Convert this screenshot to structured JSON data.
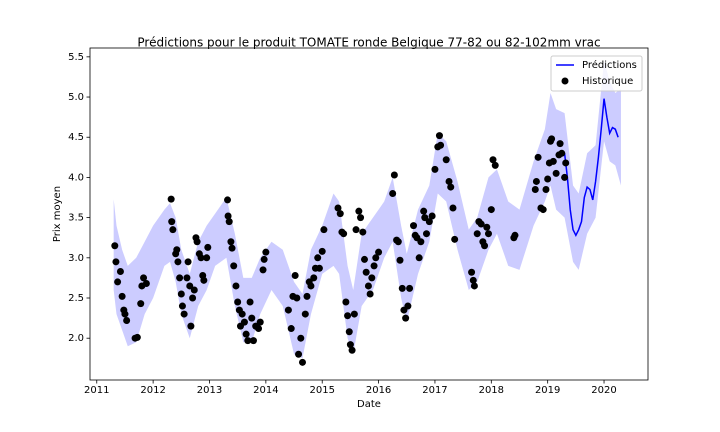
{
  "chart_data": {
    "type": "line",
    "title": "Prédictions pour le produit TOMATE ronde Belgique 77-82 ou 82-102mm vrac",
    "xlabel": "Date",
    "ylabel": "Prix moyen",
    "xlim": [
      2010.88,
      2020.78
    ],
    "ylim": [
      1.48,
      5.61
    ],
    "xticks": [
      2011,
      2012,
      2013,
      2014,
      2015,
      2016,
      2017,
      2018,
      2019,
      2020
    ],
    "yticks": [
      {
        "value": 2,
        "label": "2.0"
      },
      2.5,
      {
        "value": 3,
        "label": "3.0"
      },
      3.5,
      {
        "value": 4,
        "label": "4.0"
      },
      4.5,
      {
        "value": 5,
        "label": "5.0"
      },
      5.5
    ],
    "legend": "upper right",
    "interval": {
      "color": "#ccccff",
      "x": [
        2011.3,
        2011.35,
        2011.45,
        2011.55,
        2011.7,
        2011.85,
        2012.0,
        2012.2,
        2012.3,
        2012.4,
        2012.5,
        2012.65,
        2012.8,
        2012.95,
        2013.1,
        2013.3,
        2013.45,
        2013.6,
        2013.75,
        2013.9,
        2014.1,
        2014.3,
        2014.5,
        2014.65,
        2014.8,
        2015.0,
        2015.2,
        2015.3,
        2015.45,
        2015.55,
        2015.7,
        2015.9,
        2016.1,
        2016.25,
        2016.4,
        2016.5,
        2016.7,
        2016.9,
        2017.05,
        2017.2,
        2017.4,
        2017.6,
        2017.75,
        2017.95,
        2018.1,
        2018.3,
        2018.5,
        2018.75,
        2018.95,
        2019.05,
        2019.15,
        2019.3,
        2019.45,
        2019.55,
        2019.7,
        2019.85,
        2020.0,
        2020.1,
        2020.2,
        2020.3
      ],
      "lower": [
        2.6,
        2.3,
        2.1,
        1.9,
        1.95,
        2.3,
        2.5,
        2.9,
        2.95,
        2.7,
        2.3,
        2.0,
        2.4,
        2.6,
        2.9,
        3.0,
        2.4,
        1.95,
        1.95,
        2.3,
        2.6,
        2.4,
        1.8,
        1.75,
        2.3,
        2.8,
        2.9,
        2.8,
        2.0,
        1.8,
        2.4,
        2.6,
        3.0,
        3.2,
        2.5,
        2.2,
        2.8,
        3.2,
        3.8,
        3.7,
        3.1,
        2.6,
        2.7,
        3.1,
        3.3,
        2.9,
        2.85,
        3.4,
        3.7,
        3.9,
        3.6,
        3.5,
        2.95,
        2.85,
        3.3,
        3.5,
        4.45,
        4.2,
        4.15,
        3.9
      ],
      "upper": [
        3.73,
        3.4,
        3.1,
        2.9,
        3.0,
        3.2,
        3.4,
        3.6,
        3.68,
        3.5,
        3.1,
        2.8,
        3.2,
        3.4,
        3.55,
        3.75,
        3.3,
        2.75,
        2.75,
        3.0,
        3.2,
        3.1,
        2.7,
        2.55,
        3.1,
        3.4,
        3.8,
        3.7,
        2.9,
        2.6,
        3.3,
        3.5,
        3.7,
        4.0,
        3.4,
        3.05,
        3.6,
        3.9,
        4.55,
        4.45,
        3.95,
        3.35,
        3.5,
        4.0,
        4.1,
        3.7,
        3.6,
        4.2,
        4.6,
        5.05,
        4.85,
        4.8,
        3.9,
        3.8,
        4.3,
        4.4,
        5.45,
        5.2,
        5.05,
        5.1
      ]
    },
    "series": [
      {
        "name": "Prédictions",
        "type": "line",
        "color": "#0000ff",
        "x": [
          2019.3,
          2019.35,
          2019.4,
          2019.45,
          2019.5,
          2019.55,
          2019.6,
          2019.65,
          2019.7,
          2019.75,
          2019.8,
          2019.85,
          2019.9,
          2019.95,
          2020.0,
          2020.05,
          2020.1,
          2020.15,
          2020.2,
          2020.25
        ],
        "values": [
          4.3,
          4.0,
          3.6,
          3.35,
          3.28,
          3.35,
          3.45,
          3.75,
          3.88,
          3.85,
          3.72,
          3.95,
          4.25,
          4.6,
          4.98,
          4.75,
          4.55,
          4.62,
          4.6,
          4.5
        ]
      },
      {
        "name": "Historique",
        "type": "scatter",
        "color": "#000000",
        "x": [
          2011.32,
          2011.34,
          2011.37,
          2011.42,
          2011.45,
          2011.48,
          2011.5,
          2011.53,
          2011.68,
          2011.72,
          2011.78,
          2011.8,
          2011.83,
          2011.88,
          2012.32,
          2012.33,
          2012.35,
          2012.4,
          2012.42,
          2012.44,
          2012.47,
          2012.5,
          2012.52,
          2012.55,
          2012.6,
          2012.62,
          2012.65,
          2012.67,
          2012.7,
          2012.73,
          2012.76,
          2012.78,
          2012.82,
          2012.85,
          2012.88,
          2012.9,
          2012.95,
          2012.97,
          2013.32,
          2013.33,
          2013.35,
          2013.38,
          2013.4,
          2013.43,
          2013.47,
          2013.5,
          2013.53,
          2013.55,
          2013.58,
          2013.62,
          2013.65,
          2013.68,
          2013.72,
          2013.75,
          2013.78,
          2013.82,
          2013.87,
          2013.9,
          2013.95,
          2013.97,
          2014.0,
          2014.4,
          2014.45,
          2014.48,
          2014.52,
          2014.55,
          2014.58,
          2014.62,
          2014.65,
          2014.7,
          2014.73,
          2014.77,
          2014.8,
          2014.85,
          2014.88,
          2014.92,
          2014.95,
          2015.0,
          2015.03,
          2015.28,
          2015.32,
          2015.35,
          2015.38,
          2015.42,
          2015.45,
          2015.48,
          2015.5,
          2015.53,
          2015.57,
          2015.6,
          2015.65,
          2015.68,
          2015.72,
          2015.75,
          2015.78,
          2015.82,
          2015.85,
          2015.88,
          2015.92,
          2015.95,
          2016.0,
          2016.25,
          2016.28,
          2016.32,
          2016.35,
          2016.38,
          2016.42,
          2016.45,
          2016.48,
          2016.52,
          2016.55,
          2016.62,
          2016.65,
          2016.68,
          2016.72,
          2016.75,
          2016.8,
          2016.82,
          2016.85,
          2016.9,
          2016.95,
          2017.0,
          2017.05,
          2017.08,
          2017.1,
          2017.2,
          2017.25,
          2017.28,
          2017.32,
          2017.35,
          2017.65,
          2017.68,
          2017.7,
          2017.75,
          2017.78,
          2017.82,
          2017.85,
          2017.88,
          2017.92,
          2017.95,
          2018.0,
          2018.03,
          2018.07,
          2018.4,
          2018.42,
          2018.78,
          2018.8,
          2018.83,
          2018.88,
          2018.92,
          2018.97,
          2019.0,
          2019.03,
          2019.05,
          2019.07,
          2019.1,
          2019.15,
          2019.2,
          2019.22,
          2019.25,
          2019.3,
          2019.32
        ],
        "values": [
          3.15,
          2.95,
          2.7,
          2.83,
          2.52,
          2.35,
          2.3,
          2.22,
          2.0,
          2.01,
          2.43,
          2.65,
          2.75,
          2.68,
          3.73,
          3.45,
          3.35,
          3.05,
          3.1,
          2.95,
          2.75,
          2.55,
          2.4,
          2.3,
          2.75,
          2.95,
          2.65,
          2.15,
          2.5,
          2.6,
          3.25,
          3.2,
          3.05,
          3.0,
          2.78,
          2.72,
          3.0,
          3.13,
          3.72,
          3.52,
          3.45,
          3.2,
          3.12,
          2.9,
          2.65,
          2.45,
          2.35,
          2.15,
          2.3,
          2.2,
          2.05,
          1.97,
          2.45,
          2.25,
          1.97,
          2.15,
          2.12,
          2.2,
          2.85,
          2.98,
          3.07,
          2.35,
          2.12,
          2.52,
          2.78,
          2.5,
          1.8,
          2.0,
          1.7,
          2.3,
          2.52,
          2.7,
          2.65,
          2.75,
          2.87,
          3.0,
          2.87,
          3.08,
          3.35,
          3.62,
          3.55,
          3.32,
          3.3,
          2.45,
          2.28,
          2.08,
          1.92,
          1.85,
          2.3,
          3.35,
          3.58,
          3.5,
          3.32,
          2.98,
          2.82,
          2.65,
          2.55,
          2.75,
          2.9,
          3.0,
          3.07,
          3.8,
          4.03,
          3.22,
          3.2,
          2.97,
          2.62,
          2.35,
          2.25,
          2.4,
          2.62,
          3.4,
          3.28,
          3.25,
          3.0,
          3.2,
          3.58,
          3.5,
          3.3,
          3.45,
          3.52,
          4.1,
          4.38,
          4.52,
          4.4,
          4.22,
          3.95,
          3.88,
          3.62,
          3.23,
          2.82,
          2.72,
          2.65,
          3.3,
          3.45,
          3.42,
          3.2,
          3.15,
          3.38,
          3.3,
          3.6,
          4.22,
          4.15,
          3.25,
          3.28,
          3.85,
          3.95,
          4.25,
          3.62,
          3.6,
          3.85,
          3.98,
          4.18,
          4.45,
          4.48,
          4.2,
          4.05,
          4.28,
          4.42,
          4.3,
          4.0,
          4.18
        ]
      }
    ]
  }
}
